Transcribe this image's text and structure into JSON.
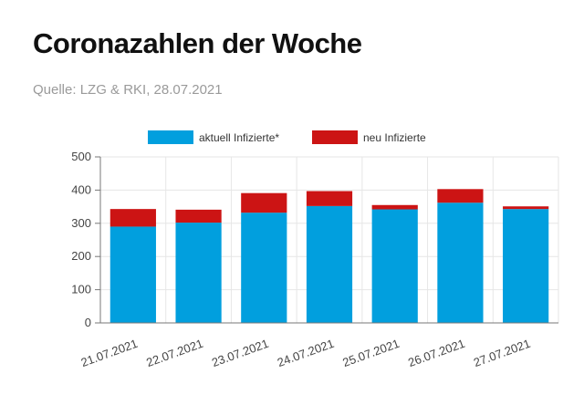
{
  "title": "Coronazahlen der Woche",
  "source": "Quelle: LZG & RKI, 28.07.2021",
  "colors": {
    "aktuell": "#019fde",
    "neu": "#cc1414",
    "grid": "#e6e6e6",
    "axis": "#777777"
  },
  "chart_data": {
    "type": "bar",
    "stacked": true,
    "categories": [
      "21.07.2021",
      "22.07.2021",
      "23.07.2021",
      "24.07.2021",
      "25.07.2021",
      "26.07.2021",
      "27.07.2021"
    ],
    "series": [
      {
        "name": "aktuell Infizierte*",
        "values": [
          290,
          302,
          332,
          352,
          342,
          362,
          343
        ]
      },
      {
        "name": "neu Infizierte",
        "values": [
          53,
          39,
          59,
          45,
          13,
          41,
          8
        ]
      }
    ],
    "ylim": [
      0,
      500
    ],
    "yticks": [
      0,
      100,
      200,
      300,
      400,
      500
    ],
    "grid": true,
    "legend_position": "top-center"
  }
}
